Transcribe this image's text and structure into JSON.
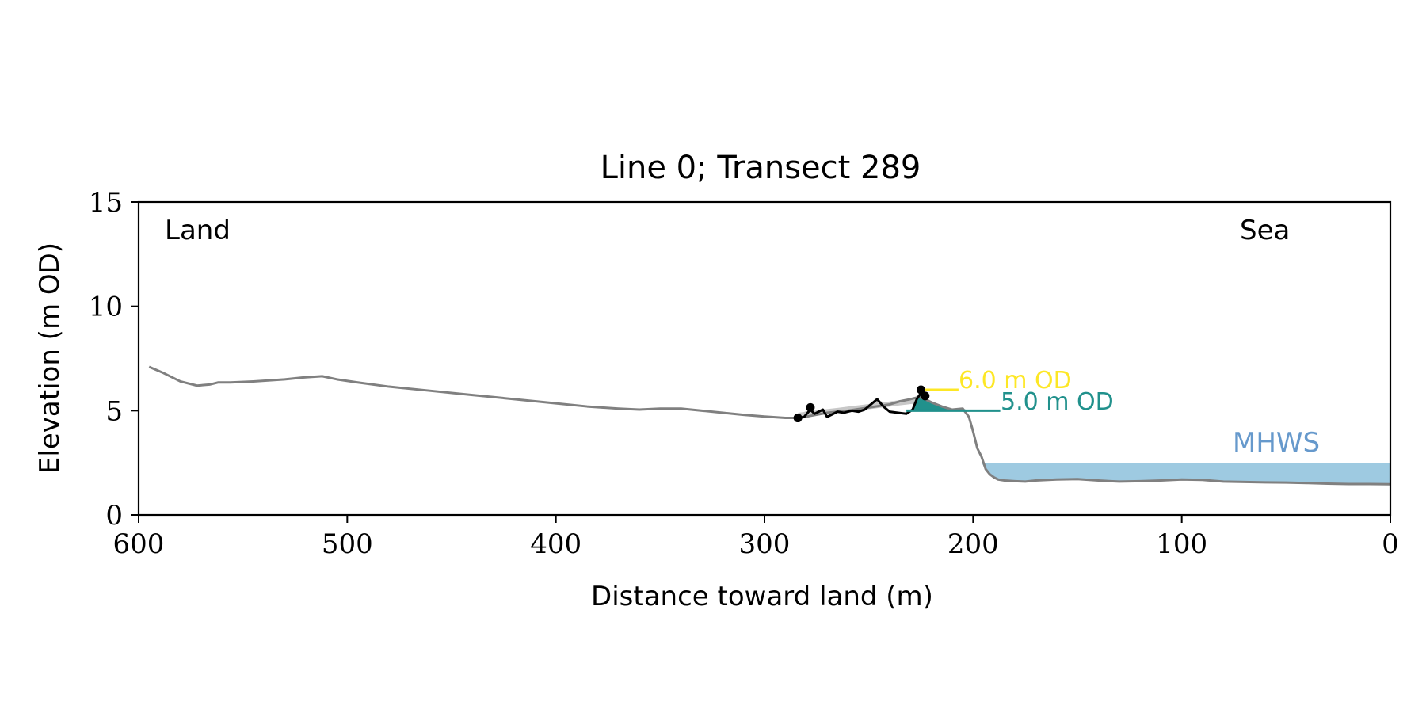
{
  "chart_data": {
    "type": "line",
    "title": "Line 0; Transect 289",
    "xlabel": "Distance toward land (m)",
    "ylabel": "Elevation (m OD)",
    "xlim": [
      600,
      0
    ],
    "ylim": [
      0,
      15
    ],
    "x_ticks": [
      600,
      500,
      400,
      300,
      200,
      100,
      0
    ],
    "y_ticks": [
      0,
      5,
      10,
      15
    ],
    "grid": false,
    "annotations": {
      "land_label": "Land",
      "sea_label": "Sea",
      "level_6_label": "6.0 m OD",
      "level_5_label": "5.0 m OD",
      "mhws_label": "MHWS"
    },
    "levels": {
      "level_6": 6.0,
      "level_5": 5.0,
      "mhws": 2.5
    },
    "colors": {
      "profile": "#808080",
      "dune": "#000000",
      "dune_fill": "#c8c8c8",
      "level_6": "#fde725",
      "level_5": "#21918c",
      "mhws_fill": "#9ecae1",
      "mhws_label": "#6699cc"
    },
    "series": [
      {
        "role": "profile",
        "x": [
          595,
          588,
          580,
          572,
          566,
          562,
          556,
          545,
          530,
          520,
          512,
          505,
          495,
          480,
          460,
          440,
          420,
          400,
          385,
          378,
          370,
          360,
          350,
          340,
          330,
          320,
          310,
          300,
          290,
          283,
          278,
          270,
          260,
          250,
          240,
          235,
          230,
          226,
          223,
          220,
          215,
          210,
          205,
          202,
          200,
          198,
          196,
          194,
          192,
          190,
          188,
          185,
          180,
          175,
          170,
          160,
          150,
          140,
          130,
          120,
          110,
          100,
          90,
          80,
          70,
          60,
          50,
          40,
          30,
          20,
          10,
          0
        ],
        "y": [
          7.1,
          6.8,
          6.4,
          6.2,
          6.25,
          6.35,
          6.35,
          6.4,
          6.5,
          6.6,
          6.65,
          6.5,
          6.35,
          6.15,
          5.95,
          5.75,
          5.55,
          5.35,
          5.2,
          5.15,
          5.1,
          5.05,
          5.1,
          5.1,
          5.0,
          4.9,
          4.8,
          4.72,
          4.65,
          4.65,
          4.75,
          4.9,
          5.0,
          5.15,
          5.3,
          5.45,
          5.55,
          5.65,
          5.55,
          5.4,
          5.2,
          5.05,
          5.1,
          4.7,
          4.0,
          3.2,
          2.8,
          2.2,
          1.95,
          1.8,
          1.7,
          1.65,
          1.62,
          1.6,
          1.65,
          1.7,
          1.72,
          1.65,
          1.6,
          1.62,
          1.65,
          1.7,
          1.68,
          1.6,
          1.58,
          1.56,
          1.55,
          1.53,
          1.5,
          1.48,
          1.48,
          1.47
        ]
      },
      {
        "role": "dune",
        "x": [
          284,
          281,
          278,
          276,
          274,
          272,
          270,
          268,
          265,
          262,
          258,
          255,
          252,
          249,
          246,
          243,
          240,
          236,
          232,
          229,
          227,
          225,
          223
        ],
        "y": [
          4.65,
          4.7,
          5.05,
          4.85,
          4.95,
          5.05,
          4.7,
          4.8,
          4.95,
          4.9,
          5.0,
          4.95,
          5.05,
          5.3,
          5.55,
          5.2,
          4.95,
          4.9,
          4.85,
          5.05,
          5.55,
          5.85,
          5.6
        ]
      }
    ],
    "markers": [
      {
        "x": 284,
        "y": 4.65
      },
      {
        "x": 278,
        "y": 5.15
      },
      {
        "x": 225,
        "y": 6.0
      },
      {
        "x": 223,
        "y": 5.7
      }
    ],
    "level_segments": {
      "level_6": [
        225,
        207
      ],
      "level_5": [
        232,
        187
      ],
      "mhws": [
        196,
        0
      ]
    }
  }
}
